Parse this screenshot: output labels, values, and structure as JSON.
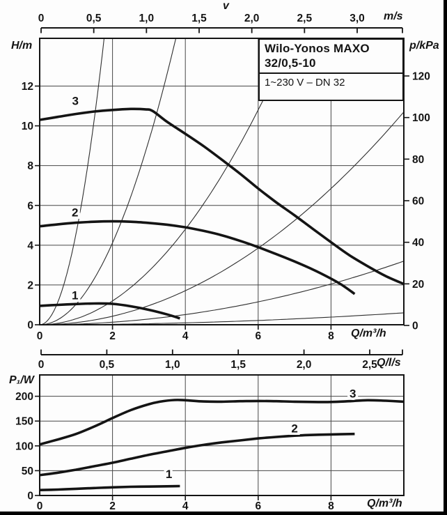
{
  "frame": {
    "paper": "#fdfdfd",
    "ink": "#141414",
    "grid": "#474747",
    "thin_curve": "#2e2e2e"
  },
  "title_box": {
    "line1": "Wilo-Yonos MAXO",
    "line2": "32/0,5-10",
    "line3": "1~230 V – DN 32"
  },
  "axes": {
    "velocity": {
      "label": "v",
      "unit": "m/s",
      "tick_labels": [
        "0",
        "0,5",
        "1,0",
        "1,5",
        "2,0",
        "2,5",
        "3,0"
      ],
      "tick_values": [
        0,
        0.5,
        1,
        1.5,
        2,
        2.5,
        3
      ],
      "range": [
        0,
        3.44
      ]
    },
    "head": {
      "label": "H/m",
      "tick_labels": [
        "0",
        "2",
        "4",
        "6",
        "8",
        "10",
        "12"
      ],
      "tick_values": [
        0,
        2,
        4,
        6,
        8,
        10,
        12
      ],
      "range": [
        0,
        14.4
      ]
    },
    "pressure": {
      "label": "p/kPa",
      "tick_labels": [
        "0",
        "20",
        "40",
        "60",
        "80",
        "100",
        "120"
      ],
      "tick_values": [
        0,
        20,
        40,
        60,
        80,
        100,
        120
      ],
      "range": [
        0,
        138
      ]
    },
    "flow_m3h": {
      "label": "Q/m³/h",
      "tick_labels": [
        "0",
        "2",
        "4",
        "6",
        "8"
      ],
      "tick_values": [
        0,
        2,
        4,
        6,
        8
      ],
      "range": [
        0,
        10
      ]
    },
    "flow_ls": {
      "label": "Q/l/s",
      "tick_labels": [
        "0",
        "0,5",
        "1,0",
        "1,5",
        "2,0",
        "2,5"
      ],
      "tick_values": [
        0,
        0.5,
        1,
        1.5,
        2,
        2.5
      ],
      "range": [
        0,
        2.76
      ]
    },
    "power": {
      "label": "P₁/W",
      "tick_labels": [
        "0",
        "50",
        "100",
        "150",
        "200"
      ],
      "tick_values": [
        0,
        50,
        100,
        150,
        200
      ],
      "range": [
        0,
        243
      ]
    }
  },
  "chart_data": [
    {
      "type": "line",
      "name": "head-flow-curves",
      "title": "Pump head curves",
      "xlabel": "Q/m³/h",
      "ylabel": "H/m",
      "y2label": "p/kPa",
      "x_range": [
        0,
        10
      ],
      "y_range": [
        0,
        14.4
      ],
      "grid": true,
      "series": [
        {
          "name": "1",
          "label_at": [
            0.97,
            1.28
          ],
          "points": [
            [
              0,
              0.95
            ],
            [
              0.5,
              1.0
            ],
            [
              1,
              1.04
            ],
            [
              1.5,
              1.07
            ],
            [
              2,
              1.05
            ],
            [
              2.5,
              0.93
            ],
            [
              3,
              0.75
            ],
            [
              3.5,
              0.52
            ],
            [
              3.85,
              0.32
            ]
          ]
        },
        {
          "name": "2",
          "label_at": [
            0.97,
            5.45
          ],
          "points": [
            [
              0,
              4.95
            ],
            [
              0.5,
              5.05
            ],
            [
              1,
              5.13
            ],
            [
              1.5,
              5.18
            ],
            [
              2,
              5.2
            ],
            [
              2.5,
              5.18
            ],
            [
              3,
              5.12
            ],
            [
              3.5,
              5.03
            ],
            [
              4,
              4.9
            ],
            [
              4.5,
              4.72
            ],
            [
              5,
              4.5
            ],
            [
              5.5,
              4.22
            ],
            [
              6,
              3.9
            ],
            [
              6.5,
              3.55
            ],
            [
              7,
              3.18
            ],
            [
              7.5,
              2.78
            ],
            [
              8,
              2.32
            ],
            [
              8.3,
              2.0
            ],
            [
              8.65,
              1.55
            ]
          ]
        },
        {
          "name": "3",
          "label_at": [
            0.98,
            11.05
          ],
          "points": [
            [
              0,
              10.3
            ],
            [
              0.5,
              10.45
            ],
            [
              1,
              10.6
            ],
            [
              1.5,
              10.72
            ],
            [
              2,
              10.8
            ],
            [
              2.5,
              10.85
            ],
            [
              2.9,
              10.83
            ],
            [
              3.1,
              10.75
            ],
            [
              3.5,
              10.2
            ],
            [
              4,
              9.6
            ],
            [
              4.5,
              8.98
            ],
            [
              5,
              8.3
            ],
            [
              5.5,
              7.6
            ],
            [
              6,
              6.85
            ],
            [
              6.5,
              6.15
            ],
            [
              7,
              5.5
            ],
            [
              7.5,
              4.82
            ],
            [
              8,
              4.15
            ],
            [
              8.5,
              3.5
            ],
            [
              9,
              2.95
            ],
            [
              9.5,
              2.45
            ],
            [
              10,
              2.05
            ]
          ]
        }
      ],
      "system_curves_k": [
        4.6,
        1.03,
        0.3,
        0.107,
        0.032,
        0.006
      ]
    },
    {
      "type": "line",
      "name": "power-flow-curves",
      "title": "Power input curves",
      "xlabel": "Q/m³/h",
      "ylabel": "P₁/W",
      "x_range": [
        0,
        10
      ],
      "y_range": [
        0,
        243
      ],
      "grid": true,
      "series": [
        {
          "name": "1",
          "label_at": [
            3.55,
            35
          ],
          "points": [
            [
              0,
              11
            ],
            [
              0.5,
              12
            ],
            [
              1,
              13.5
            ],
            [
              1.5,
              15
            ],
            [
              2,
              16.5
            ],
            [
              2.5,
              17.5
            ],
            [
              3,
              18
            ],
            [
              3.5,
              18.6
            ],
            [
              3.85,
              19
            ]
          ]
        },
        {
          "name": "2",
          "label_at": [
            7.0,
            127
          ],
          "points": [
            [
              0,
              41
            ],
            [
              0.5,
              46
            ],
            [
              1,
              52
            ],
            [
              1.5,
              59
            ],
            [
              2,
              66
            ],
            [
              2.5,
              74
            ],
            [
              3,
              82
            ],
            [
              3.5,
              89
            ],
            [
              4,
              96
            ],
            [
              4.5,
              102
            ],
            [
              5,
              107
            ],
            [
              5.5,
              111
            ],
            [
              6,
              115
            ],
            [
              6.5,
              118
            ],
            [
              7,
              120.5
            ],
            [
              7.5,
              122
            ],
            [
              8,
              123
            ],
            [
              8.65,
              124
            ]
          ]
        },
        {
          "name": "3",
          "label_at": [
            8.6,
            197
          ],
          "points": [
            [
              0,
              103
            ],
            [
              0.5,
              113
            ],
            [
              1,
              124
            ],
            [
              1.5,
              139
            ],
            [
              2,
              156
            ],
            [
              2.5,
              172
            ],
            [
              3,
              184
            ],
            [
              3.3,
              189
            ],
            [
              3.7,
              192.5
            ],
            [
              4,
              192
            ],
            [
              4.5,
              189.5
            ],
            [
              5,
              189
            ],
            [
              5.5,
              190
            ],
            [
              6,
              190.5
            ],
            [
              6.5,
              190
            ],
            [
              7,
              189
            ],
            [
              7.5,
              188.5
            ],
            [
              8,
              188.5
            ],
            [
              8.5,
              190
            ],
            [
              9,
              192
            ],
            [
              9.5,
              191
            ],
            [
              10,
              189
            ]
          ]
        }
      ]
    }
  ]
}
